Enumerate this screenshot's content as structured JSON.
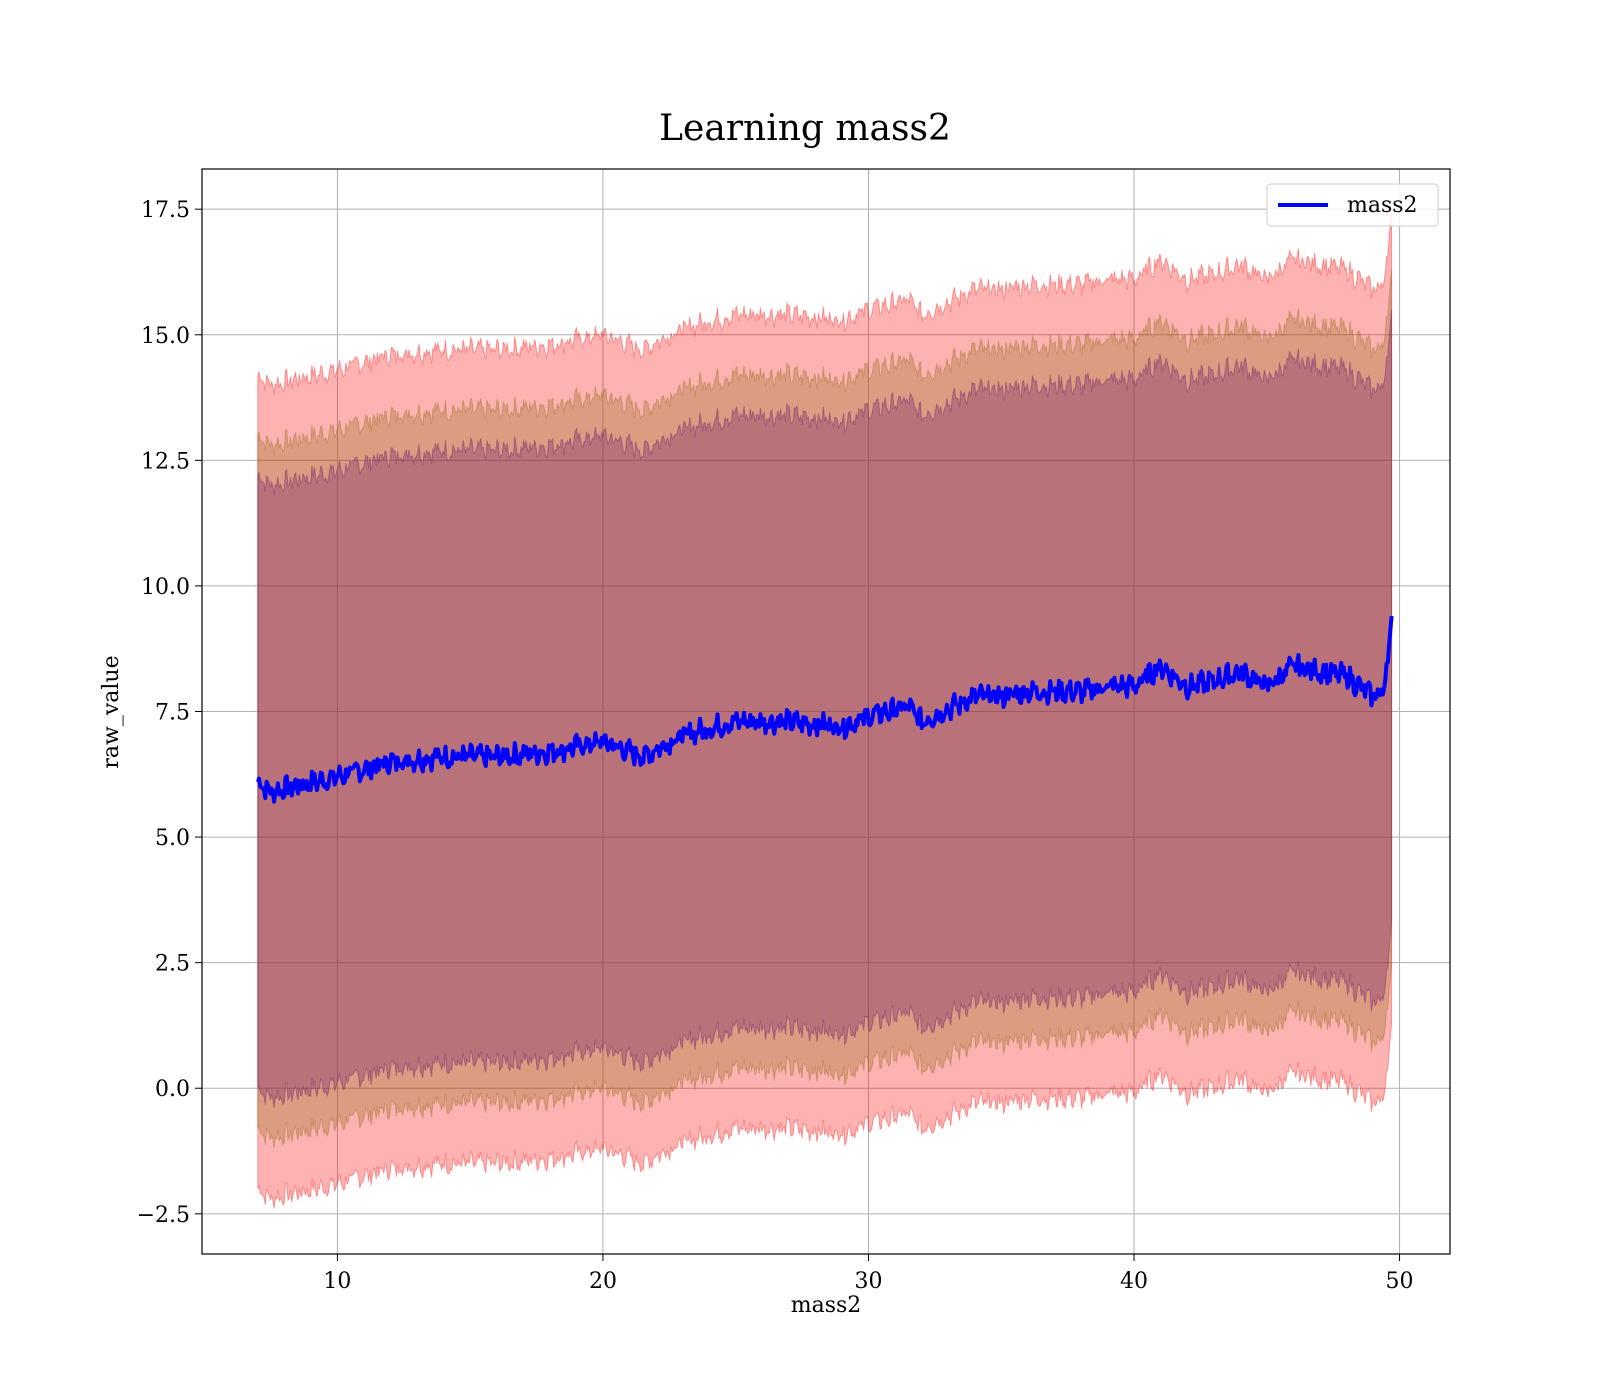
{
  "chart_data": {
    "type": "line",
    "title": "Learning mass2",
    "xlabel": "mass2",
    "ylabel": "raw_value",
    "xlim": [
      4.9,
      51.9
    ],
    "ylim": [
      -3.3,
      18.3
    ],
    "x_ticks": [
      10,
      20,
      30,
      40,
      50
    ],
    "x_tick_labels": [
      "10",
      "20",
      "30",
      "40",
      "50"
    ],
    "y_ticks": [
      -2.5,
      0.0,
      2.5,
      5.0,
      7.5,
      10.0,
      12.5,
      15.0,
      17.5
    ],
    "y_tick_labels": [
      "−2.5",
      "0.0",
      "2.5",
      "5.0",
      "7.5",
      "10.0",
      "12.5",
      "15.0",
      "17.5"
    ],
    "grid": true,
    "legend": {
      "position": "top-right",
      "entries": [
        "mass2"
      ]
    },
    "colors": {
      "line": "#0000ff",
      "band_outer": "#ff0000",
      "band_middle": "#8b6914",
      "band_inner": "#6a0d6a",
      "grid": "#b0b0b0"
    },
    "series": [
      {
        "name": "mass2",
        "x": [
          7.0,
          7.5,
          10.0,
          12.0,
          14.0,
          16.0,
          18.0,
          20.0,
          21.5,
          22.5,
          23.5,
          25.0,
          27.0,
          29.0,
          30.0,
          31.5,
          32.0,
          34.0,
          35.0,
          36.0,
          38.0,
          39.0,
          40.0,
          41.0,
          42.0,
          43.0,
          44.0,
          45.0,
          46.0,
          47.0,
          48.0,
          49.0,
          49.4,
          49.7
        ],
        "mean": [
          6.1,
          5.9,
          6.2,
          6.5,
          6.6,
          6.6,
          6.7,
          6.9,
          6.6,
          6.9,
          7.1,
          7.3,
          7.3,
          7.2,
          7.4,
          7.6,
          7.3,
          7.8,
          7.8,
          7.9,
          7.9,
          8.0,
          8.0,
          8.4,
          8.0,
          8.1,
          8.3,
          8.0,
          8.4,
          8.3,
          8.2,
          7.8,
          7.9,
          9.3
        ],
        "band_outer": [
          8.1,
          8.1,
          8.1,
          8.1,
          8.1,
          8.1,
          8.1,
          8.1,
          8.1,
          8.1,
          8.1,
          8.1,
          8.1,
          8.1,
          8.1,
          8.1,
          8.1,
          8.1,
          8.1,
          8.1,
          8.1,
          8.1,
          8.1,
          8.1,
          8.1,
          8.1,
          8.1,
          8.1,
          8.1,
          8.1,
          8.1,
          8.1,
          8.1,
          8.1
        ],
        "band_middle": [
          6.9,
          6.9,
          6.9,
          6.9,
          6.9,
          6.9,
          6.9,
          6.9,
          6.9,
          6.9,
          6.9,
          6.9,
          6.9,
          6.9,
          6.9,
          6.9,
          6.9,
          6.9,
          6.9,
          6.9,
          6.9,
          6.9,
          6.9,
          6.9,
          6.9,
          6.9,
          6.9,
          6.9,
          6.9,
          6.9,
          6.9,
          6.9,
          6.9,
          6.9
        ],
        "band_inner": [
          6.1,
          6.1,
          6.1,
          6.1,
          6.1,
          6.1,
          6.1,
          6.1,
          6.1,
          6.1,
          6.1,
          6.1,
          6.1,
          6.1,
          6.1,
          6.1,
          6.1,
          6.1,
          6.1,
          6.1,
          6.1,
          6.1,
          6.1,
          6.1,
          6.1,
          6.1,
          6.1,
          6.1,
          6.1,
          6.1,
          6.1,
          6.1,
          6.1,
          6.1
        ]
      }
    ]
  }
}
